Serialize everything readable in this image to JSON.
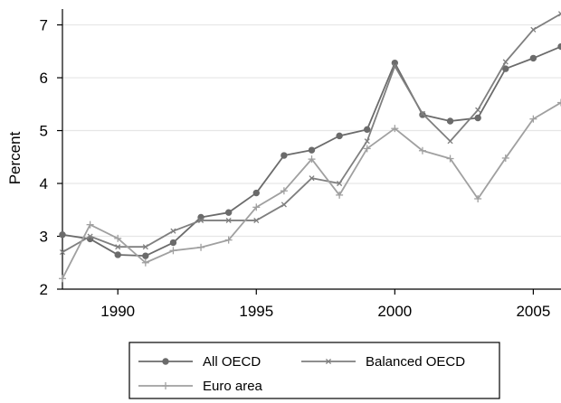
{
  "chart_data": {
    "type": "line",
    "title": "",
    "xlabel": "",
    "ylabel": "Percent",
    "xlim": [
      1988,
      2006
    ],
    "ylim": [
      2,
      7.3
    ],
    "x_ticks": [
      1990,
      1995,
      2000,
      2005
    ],
    "y_ticks": [
      2,
      3,
      4,
      5,
      6,
      7
    ],
    "grid": "horizontal",
    "legend_position": "bottom",
    "x": [
      1988,
      1989,
      1990,
      1991,
      1992,
      1993,
      1994,
      1995,
      1996,
      1997,
      1998,
      1999,
      2000,
      2001,
      2002,
      2003,
      2004,
      2005,
      2006
    ],
    "series": [
      {
        "name": "All OECD",
        "color": "#6b6b6b",
        "marker": "circle",
        "values": [
          3.03,
          2.95,
          2.65,
          2.63,
          2.88,
          3.36,
          3.45,
          3.82,
          4.53,
          4.63,
          4.9,
          5.02,
          6.28,
          5.3,
          5.18,
          5.24,
          6.17,
          6.37,
          6.59
        ]
      },
      {
        "name": "Balanced OECD",
        "color": "#7f7f7f",
        "marker": "x",
        "values": [
          2.7,
          3.0,
          2.8,
          2.8,
          3.1,
          3.3,
          3.3,
          3.3,
          3.6,
          4.1,
          4.0,
          4.8,
          6.22,
          5.32,
          4.8,
          5.39,
          6.3,
          6.91,
          7.21
        ]
      },
      {
        "name": "Euro area",
        "color": "#a0a0a0",
        "marker": "plus",
        "values": [
          2.2,
          3.22,
          2.96,
          2.5,
          2.73,
          2.79,
          2.93,
          3.55,
          3.86,
          4.46,
          3.78,
          4.66,
          5.04,
          4.62,
          4.47,
          3.71,
          4.48,
          5.22,
          5.53
        ]
      }
    ]
  }
}
